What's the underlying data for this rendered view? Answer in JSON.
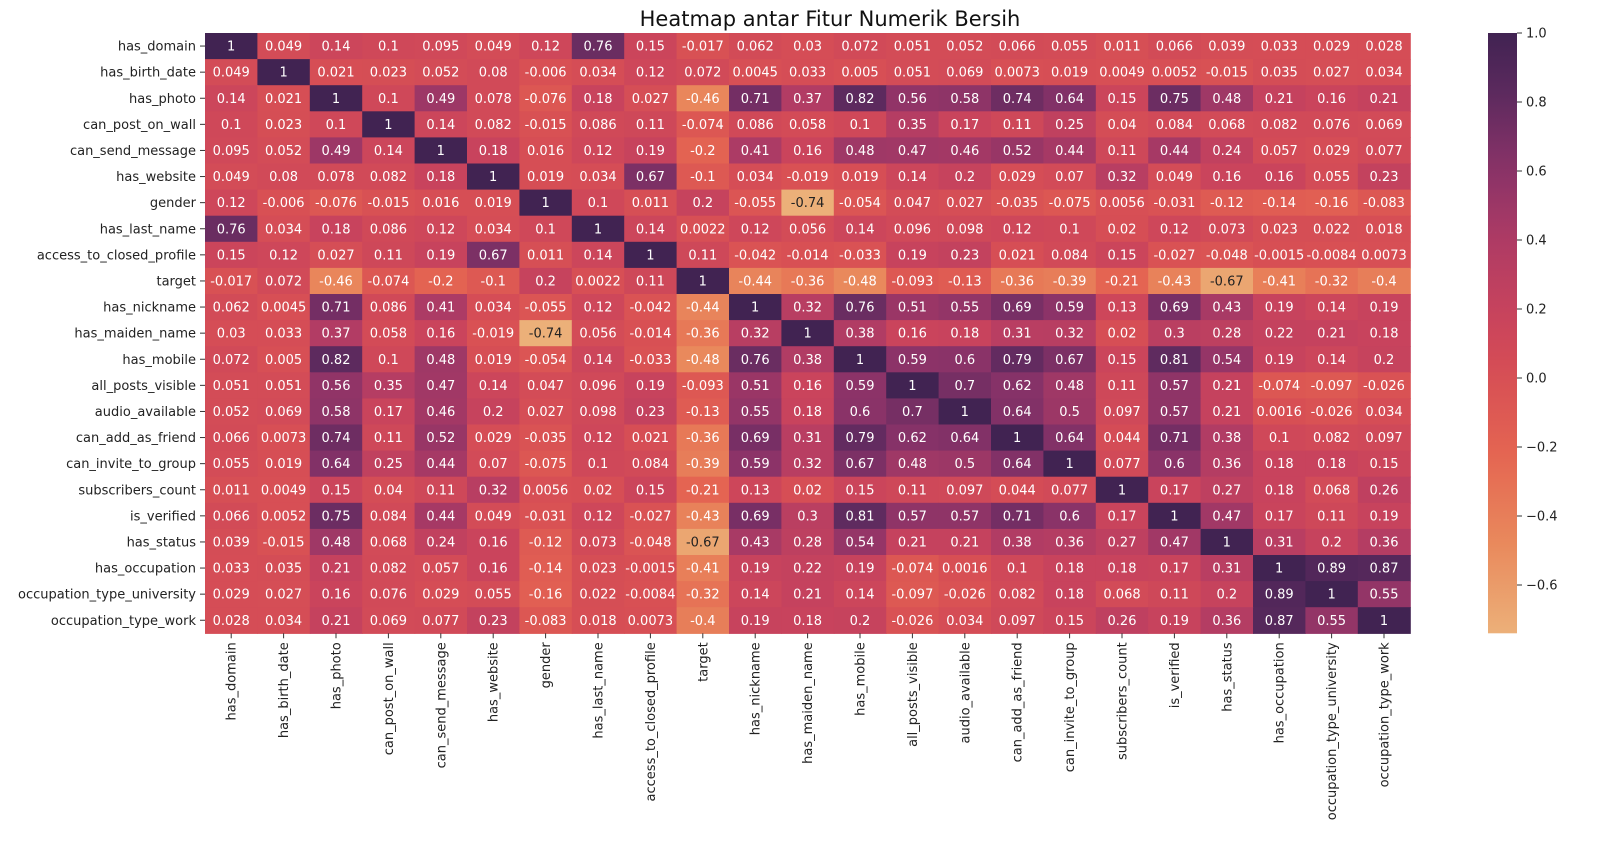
{
  "chart_data": {
    "type": "heatmap",
    "title": "Heatmap antar Fitur Numerik Bersih",
    "xlabel": "",
    "ylabel": "",
    "colormap": "flare",
    "colorbar_range": [
      -0.74,
      1.0
    ],
    "colorbar_ticks": [
      "1.0",
      "0.8",
      "0.6",
      "0.4",
      "0.2",
      "0.0",
      "−0.2",
      "−0.4",
      "−0.6"
    ],
    "colorbar_tick_values": [
      1.0,
      0.8,
      0.6,
      0.4,
      0.2,
      0.0,
      -0.2,
      -0.4,
      -0.6
    ],
    "labels": [
      "has_domain",
      "has_birth_date",
      "has_photo",
      "can_post_on_wall",
      "can_send_message",
      "has_website",
      "gender",
      "has_last_name",
      "access_to_closed_profile",
      "target",
      "has_nickname",
      "has_maiden_name",
      "has_mobile",
      "all_posts_visible",
      "audio_available",
      "can_add_as_friend",
      "can_invite_to_group",
      "subscribers_count",
      "is_verified",
      "has_status",
      "has_occupation",
      "occupation_type_university",
      "occupation_type_work"
    ],
    "cell_text": [
      [
        "1",
        "0.049",
        "0.14",
        "0.1",
        "0.095",
        "0.049",
        "0.12",
        "0.76",
        "0.15",
        "-0.017",
        "0.062",
        "0.03",
        "0.072",
        "0.051",
        "0.052",
        "0.066",
        "0.055",
        "0.011",
        "0.066",
        "0.039",
        "0.033",
        "0.029",
        "0.028"
      ],
      [
        "0.049",
        "1",
        "0.021",
        "0.023",
        "0.052",
        "0.08",
        "-0.006",
        "0.034",
        "0.12",
        "0.072",
        "0.0045",
        "0.033",
        "0.005",
        "0.051",
        "0.069",
        "0.0073",
        "0.019",
        "0.0049",
        "0.0052",
        "-0.015",
        "0.035",
        "0.027",
        "0.034"
      ],
      [
        "0.14",
        "0.021",
        "1",
        "0.1",
        "0.49",
        "0.078",
        "-0.076",
        "0.18",
        "0.027",
        "-0.46",
        "0.71",
        "0.37",
        "0.82",
        "0.56",
        "0.58",
        "0.74",
        "0.64",
        "0.15",
        "0.75",
        "0.48",
        "0.21",
        "0.16",
        "0.21"
      ],
      [
        "0.1",
        "0.023",
        "0.1",
        "1",
        "0.14",
        "0.082",
        "-0.015",
        "0.086",
        "0.11",
        "-0.074",
        "0.086",
        "0.058",
        "0.1",
        "0.35",
        "0.17",
        "0.11",
        "0.25",
        "0.04",
        "0.084",
        "0.068",
        "0.082",
        "0.076",
        "0.069"
      ],
      [
        "0.095",
        "0.052",
        "0.49",
        "0.14",
        "1",
        "0.18",
        "0.016",
        "0.12",
        "0.19",
        "-0.2",
        "0.41",
        "0.16",
        "0.48",
        "0.47",
        "0.46",
        "0.52",
        "0.44",
        "0.11",
        "0.44",
        "0.24",
        "0.057",
        "0.029",
        "0.077"
      ],
      [
        "0.049",
        "0.08",
        "0.078",
        "0.082",
        "0.18",
        "1",
        "0.019",
        "0.034",
        "0.67",
        "-0.1",
        "0.034",
        "-0.019",
        "0.019",
        "0.14",
        "0.2",
        "0.029",
        "0.07",
        "0.32",
        "0.049",
        "0.16",
        "0.16",
        "0.055",
        "0.23"
      ],
      [
        "0.12",
        "-0.006",
        "-0.076",
        "-0.015",
        "0.016",
        "0.019",
        "1",
        "0.1",
        "0.011",
        "0.2",
        "-0.055",
        "-0.74",
        "-0.054",
        "0.047",
        "0.027",
        "-0.035",
        "-0.075",
        "0.0056",
        "-0.031",
        "-0.12",
        "-0.14",
        "-0.16",
        "-0.083"
      ],
      [
        "0.76",
        "0.034",
        "0.18",
        "0.086",
        "0.12",
        "0.034",
        "0.1",
        "1",
        "0.14",
        "0.0022",
        "0.12",
        "0.056",
        "0.14",
        "0.096",
        "0.098",
        "0.12",
        "0.1",
        "0.02",
        "0.12",
        "0.073",
        "0.023",
        "0.022",
        "0.018"
      ],
      [
        "0.15",
        "0.12",
        "0.027",
        "0.11",
        "0.19",
        "0.67",
        "0.011",
        "0.14",
        "1",
        "0.11",
        "-0.042",
        "-0.014",
        "-0.033",
        "0.19",
        "0.23",
        "0.021",
        "0.084",
        "0.15",
        "-0.027",
        "-0.048",
        "-0.0015",
        "-0.0084",
        "0.0073"
      ],
      [
        "-0.017",
        "0.072",
        "-0.46",
        "-0.074",
        "-0.2",
        "-0.1",
        "0.2",
        "0.0022",
        "0.11",
        "1",
        "-0.44",
        "-0.36",
        "-0.48",
        "-0.093",
        "-0.13",
        "-0.36",
        "-0.39",
        "-0.21",
        "-0.43",
        "-0.67",
        "-0.41",
        "-0.32",
        "-0.4"
      ],
      [
        "0.062",
        "0.0045",
        "0.71",
        "0.086",
        "0.41",
        "0.034",
        "-0.055",
        "0.12",
        "-0.042",
        "-0.44",
        "1",
        "0.32",
        "0.76",
        "0.51",
        "0.55",
        "0.69",
        "0.59",
        "0.13",
        "0.69",
        "0.43",
        "0.19",
        "0.14",
        "0.19"
      ],
      [
        "0.03",
        "0.033",
        "0.37",
        "0.058",
        "0.16",
        "-0.019",
        "-0.74",
        "0.056",
        "-0.014",
        "-0.36",
        "0.32",
        "1",
        "0.38",
        "0.16",
        "0.18",
        "0.31",
        "0.32",
        "0.02",
        "0.3",
        "0.28",
        "0.22",
        "0.21",
        "0.18"
      ],
      [
        "0.072",
        "0.005",
        "0.82",
        "0.1",
        "0.48",
        "0.019",
        "-0.054",
        "0.14",
        "-0.033",
        "-0.48",
        "0.76",
        "0.38",
        "1",
        "0.59",
        "0.6",
        "0.79",
        "0.67",
        "0.15",
        "0.81",
        "0.54",
        "0.19",
        "0.14",
        "0.2"
      ],
      [
        "0.051",
        "0.051",
        "0.56",
        "0.35",
        "0.47",
        "0.14",
        "0.047",
        "0.096",
        "0.19",
        "-0.093",
        "0.51",
        "0.16",
        "0.59",
        "1",
        "0.7",
        "0.62",
        "0.48",
        "0.11",
        "0.57",
        "0.21",
        "-0.074",
        "-0.097",
        "-0.026"
      ],
      [
        "0.052",
        "0.069",
        "0.58",
        "0.17",
        "0.46",
        "0.2",
        "0.027",
        "0.098",
        "0.23",
        "-0.13",
        "0.55",
        "0.18",
        "0.6",
        "0.7",
        "1",
        "0.64",
        "0.5",
        "0.097",
        "0.57",
        "0.21",
        "0.0016",
        "-0.026",
        "0.034"
      ],
      [
        "0.066",
        "0.0073",
        "0.74",
        "0.11",
        "0.52",
        "0.029",
        "-0.035",
        "0.12",
        "0.021",
        "-0.36",
        "0.69",
        "0.31",
        "0.79",
        "0.62",
        "0.64",
        "1",
        "0.64",
        "0.044",
        "0.71",
        "0.38",
        "0.1",
        "0.082",
        "0.097"
      ],
      [
        "0.055",
        "0.019",
        "0.64",
        "0.25",
        "0.44",
        "0.07",
        "-0.075",
        "0.1",
        "0.084",
        "-0.39",
        "0.59",
        "0.32",
        "0.67",
        "0.48",
        "0.5",
        "0.64",
        "1",
        "0.077",
        "0.6",
        "0.36",
        "0.18",
        "0.18",
        "0.15"
      ],
      [
        "0.011",
        "0.0049",
        "0.15",
        "0.04",
        "0.11",
        "0.32",
        "0.0056",
        "0.02",
        "0.15",
        "-0.21",
        "0.13",
        "0.02",
        "0.15",
        "0.11",
        "0.097",
        "0.044",
        "0.077",
        "1",
        "0.17",
        "0.27",
        "0.18",
        "0.068",
        "0.26"
      ],
      [
        "0.066",
        "0.0052",
        "0.75",
        "0.084",
        "0.44",
        "0.049",
        "-0.031",
        "0.12",
        "-0.027",
        "-0.43",
        "0.69",
        "0.3",
        "0.81",
        "0.57",
        "0.57",
        "0.71",
        "0.6",
        "0.17",
        "1",
        "0.47",
        "0.17",
        "0.11",
        "0.19"
      ],
      [
        "0.039",
        "-0.015",
        "0.48",
        "0.068",
        "0.24",
        "0.16",
        "-0.12",
        "0.073",
        "-0.048",
        "-0.67",
        "0.43",
        "0.28",
        "0.54",
        "0.21",
        "0.21",
        "0.38",
        "0.36",
        "0.27",
        "0.47",
        "1",
        "0.31",
        "0.2",
        "0.36"
      ],
      [
        "0.033",
        "0.035",
        "0.21",
        "0.082",
        "0.057",
        "0.16",
        "-0.14",
        "0.023",
        "-0.0015",
        "-0.41",
        "0.19",
        "0.22",
        "0.19",
        "-0.074",
        "0.0016",
        "0.1",
        "0.18",
        "0.18",
        "0.17",
        "0.31",
        "1",
        "0.89",
        "0.87"
      ],
      [
        "0.029",
        "0.027",
        "0.16",
        "0.076",
        "0.029",
        "0.055",
        "-0.16",
        "0.022",
        "-0.0084",
        "-0.32",
        "0.14",
        "0.21",
        "0.14",
        "-0.097",
        "-0.026",
        "0.082",
        "0.18",
        "0.068",
        "0.11",
        "0.2",
        "0.89",
        "1",
        "0.55"
      ],
      [
        "0.028",
        "0.034",
        "0.21",
        "0.069",
        "0.077",
        "0.23",
        "-0.083",
        "0.018",
        "0.0073",
        "-0.4",
        "0.19",
        "0.18",
        "0.2",
        "-0.026",
        "0.034",
        "0.097",
        "0.15",
        "0.26",
        "0.19",
        "0.36",
        "0.87",
        "0.55",
        "1"
      ]
    ]
  }
}
